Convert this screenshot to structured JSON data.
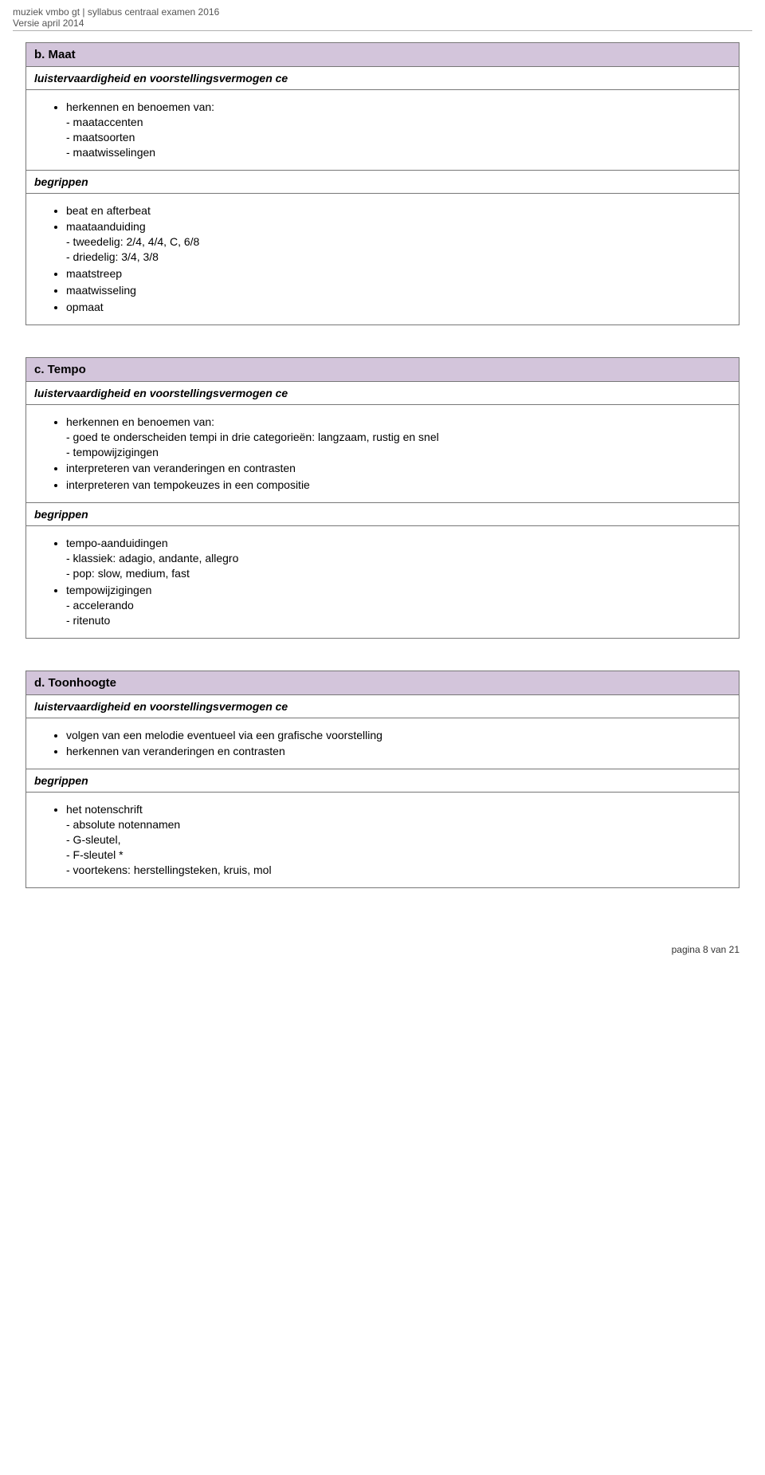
{
  "header": {
    "line1": "muziek vmbo gt | syllabus centraal examen 2016",
    "line2": "Versie april 2014"
  },
  "sections": {
    "maat": {
      "title": "b. Maat",
      "sub1": "luistervaardigheid en voorstellingsvermogen ce",
      "body1": {
        "item1": "herkennen en benoemen van:",
        "item1a": "- maataccenten",
        "item1b": "- maatsoorten",
        "item1c": "- maatwisselingen"
      },
      "sub2": "begrippen",
      "body2": {
        "item1": "beat en afterbeat",
        "item2": "maataanduiding",
        "item2a": "- tweedelig: 2/4, 4/4, C, 6/8",
        "item2b": "- driedelig: 3/4, 3/8",
        "item3": "maatstreep",
        "item4": "maatwisseling",
        "item5": "opmaat"
      }
    },
    "tempo": {
      "title": "c. Tempo",
      "sub1": "luistervaardigheid en voorstellingsvermogen ce",
      "body1": {
        "item1": "herkennen en benoemen van:",
        "item1a": "- goed te onderscheiden tempi in drie categorieën: langzaam, rustig en snel",
        "item1b": " - tempowijzigingen",
        "item2": "interpreteren van veranderingen en contrasten",
        "item3": "interpreteren van tempokeuzes in een compositie"
      },
      "sub2": "begrippen",
      "body2": {
        "item1": "tempo-aanduidingen",
        "item1a": "- klassiek: adagio, andante, allegro",
        "item1b": "- pop: slow, medium, fast",
        "item2": "tempowijzigingen",
        "item2a": "- accelerando",
        "item2b": "- ritenuto"
      }
    },
    "toonhoogte": {
      "title": "d. Toonhoogte",
      "sub1": "luistervaardigheid en voorstellingsvermogen ce",
      "body1": {
        "item1": "volgen van een melodie eventueel via een grafische voorstelling",
        "item2": "herkennen van veranderingen en contrasten"
      },
      "sub2": "begrippen",
      "body2": {
        "item1": "het notenschrift",
        "item1a": "- absolute notennamen",
        "item1b": "- G-sleutel,",
        "item1c": "- F-sleutel *",
        "item1d": "- voortekens:  herstellingsteken, kruis, mol"
      }
    }
  },
  "footer": {
    "text": "pagina 8 van 21"
  },
  "style": {
    "title_bg": "#d3c5db",
    "border_color": "#777777",
    "body_font_size": 14,
    "header_font_size": 12
  }
}
